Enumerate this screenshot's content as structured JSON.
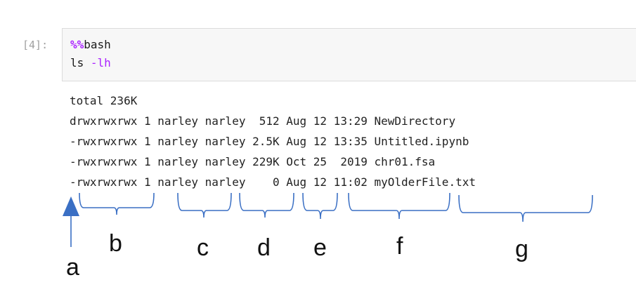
{
  "cell": {
    "prompt": "[4]:",
    "magic": "%%",
    "magic_cmd": "bash",
    "cmd_prefix": "ls ",
    "cmd_flag": "-lh"
  },
  "output_lines": [
    "total 236K",
    "drwxrwxrwx 1 narley narley  512 Aug 12 13:29 NewDirectory",
    "-rwxrwxrwx 1 narley narley 2.5K Aug 12 13:35 Untitled.ipynb",
    "-rwxrwxrwx 1 narley narley 229K Oct 25  2019 chr01.fsa",
    "-rwxrwxrwx 1 narley narley    0 Aug 12 11:02 myOlderFile.txt"
  ],
  "annotations": {
    "a": "a",
    "b": "b",
    "c": "c",
    "d": "d",
    "e": "e",
    "f": "f",
    "g": "g"
  },
  "colors": {
    "annotation_blue": "#3a6fc4",
    "magic_purple": "#aa22ff"
  }
}
